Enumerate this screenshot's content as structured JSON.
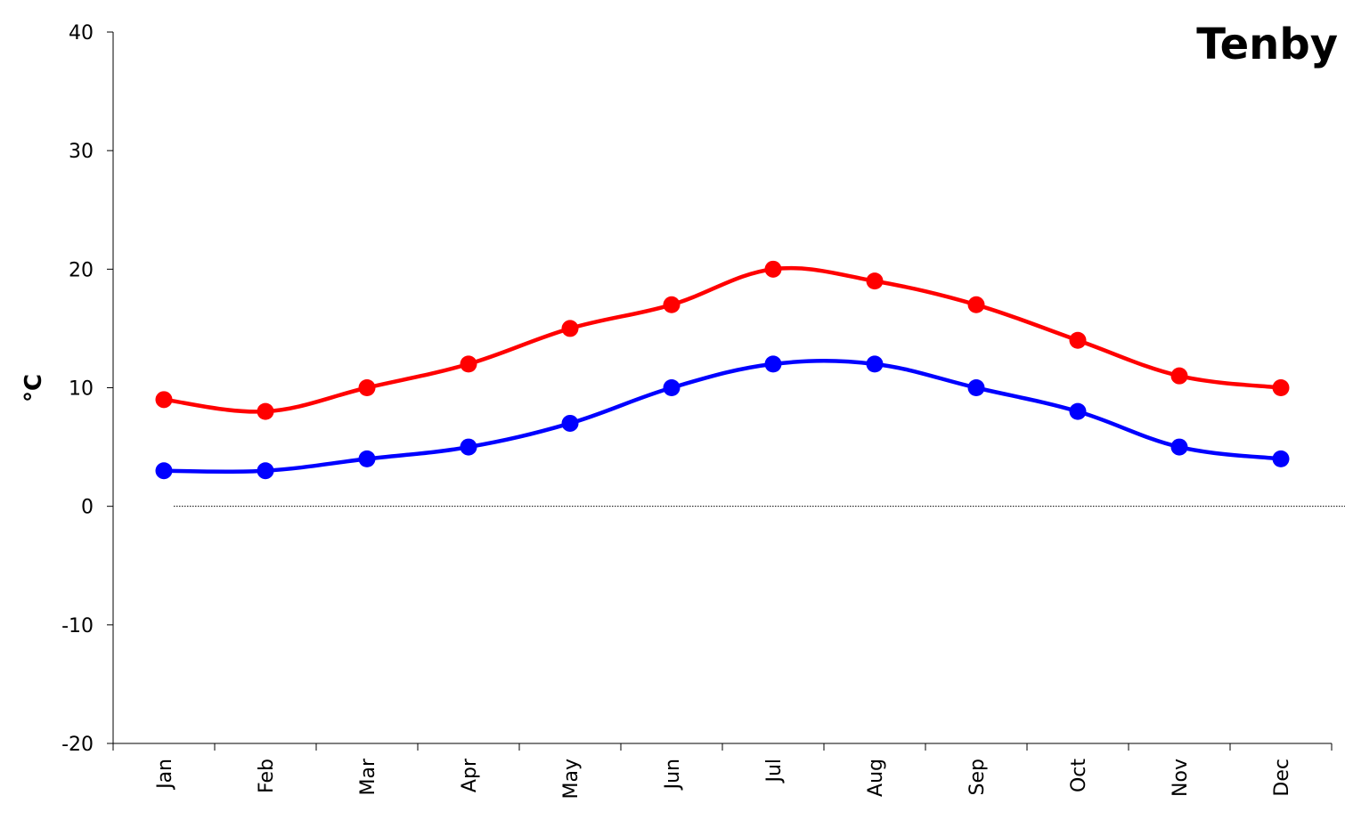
{
  "chart_data": {
    "type": "line",
    "title": "Tenby",
    "ylabel": "°C",
    "xlabel": "",
    "categories": [
      "Jan",
      "Feb",
      "Mar",
      "Apr",
      "May",
      "Jun",
      "Jul",
      "Aug",
      "Sep",
      "Oct",
      "Nov",
      "Dec"
    ],
    "ylim": [
      -20,
      40
    ],
    "yticks": [
      -20,
      -10,
      0,
      10,
      20,
      30,
      40
    ],
    "grid": false,
    "zero_line": "dotted",
    "series": [
      {
        "values": [
          9,
          8,
          10,
          12,
          15,
          17,
          20,
          19,
          17,
          14,
          11,
          10
        ],
        "color": "#ff0000"
      },
      {
        "values": [
          3,
          3,
          4,
          5,
          7,
          10,
          12,
          12,
          10,
          8,
          5,
          4
        ],
        "color": "#0000ff"
      }
    ]
  }
}
